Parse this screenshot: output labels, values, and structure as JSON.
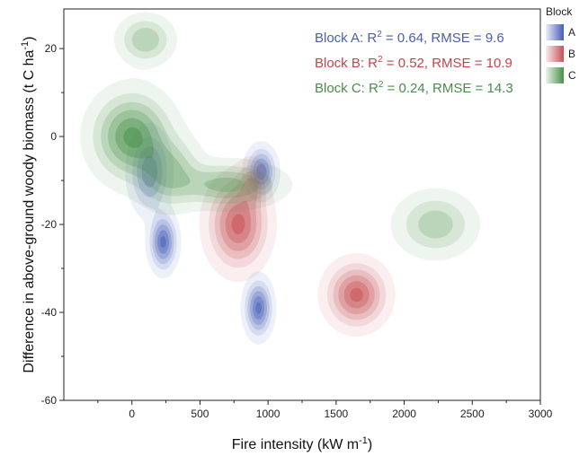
{
  "chart_data": {
    "type": "density-contour",
    "xlabel": "Fire intensity (kW m",
    "xlabel_sup": "-1",
    "xlabel_close": ")",
    "ylabel": "Difference in above-ground woody biomass (t C ha",
    "ylabel_sup": "-1",
    "ylabel_close": ")",
    "xlim": [
      -500,
      3000
    ],
    "ylim": [
      -60,
      29
    ],
    "x_ticks": [
      0,
      500,
      1000,
      1500,
      2000,
      2500,
      3000
    ],
    "y_ticks": [
      -60,
      -40,
      -20,
      0,
      20
    ],
    "legend": {
      "title": "Block",
      "position": "right",
      "entries": [
        "A",
        "B",
        "C"
      ]
    },
    "annotations": [
      {
        "text": "Block A: R",
        "sup": "2",
        "rest": " = 0.64, RMSE =  9.6",
        "color": "#4a5fb0"
      },
      {
        "text": "Block B: R",
        "sup": "2",
        "rest": " = 0.52, RMSE = 10.9",
        "color": "#c0464c"
      },
      {
        "text": "Block C: R",
        "sup": "2",
        "rest": " = 0.24, RMSE = 14.3",
        "color": "#4a8c4a"
      }
    ],
    "series": [
      {
        "name": "A",
        "color": "#3b55b4",
        "peaks": [
          {
            "x": 130,
            "y": -8,
            "sx": 80,
            "sy": 5,
            "w": 0.7
          },
          {
            "x": 230,
            "y": -24,
            "sx": 55,
            "sy": 3.5,
            "w": 1.0
          },
          {
            "x": 950,
            "y": -8,
            "sx": 60,
            "sy": 3,
            "w": 0.9
          },
          {
            "x": 930,
            "y": -39,
            "sx": 55,
            "sy": 3.5,
            "w": 1.0
          }
        ]
      },
      {
        "name": "B",
        "color": "#c4464c",
        "peaks": [
          {
            "x": 780,
            "y": -20,
            "sx": 120,
            "sy": 5.5,
            "w": 1.0
          },
          {
            "x": 880,
            "y": -11,
            "sx": 60,
            "sy": 3,
            "w": 0.5
          },
          {
            "x": 1650,
            "y": -36,
            "sx": 120,
            "sy": 4,
            "w": 1.0
          }
        ]
      },
      {
        "name": "C",
        "color": "#3f8a3f",
        "peaks": [
          {
            "x": 0,
            "y": 0,
            "sx": 160,
            "sy": 5.5,
            "w": 1.0
          },
          {
            "x": 270,
            "y": -8,
            "sx": 130,
            "sy": 4.5,
            "w": 0.6
          },
          {
            "x": 700,
            "y": -11,
            "sx": 220,
            "sy": 2.8,
            "w": 0.65
          },
          {
            "x": 100,
            "y": 22,
            "sx": 110,
            "sy": 3,
            "w": 0.55
          },
          {
            "x": 2230,
            "y": -20,
            "sx": 160,
            "sy": 4,
            "w": 0.5
          }
        ]
      }
    ]
  }
}
